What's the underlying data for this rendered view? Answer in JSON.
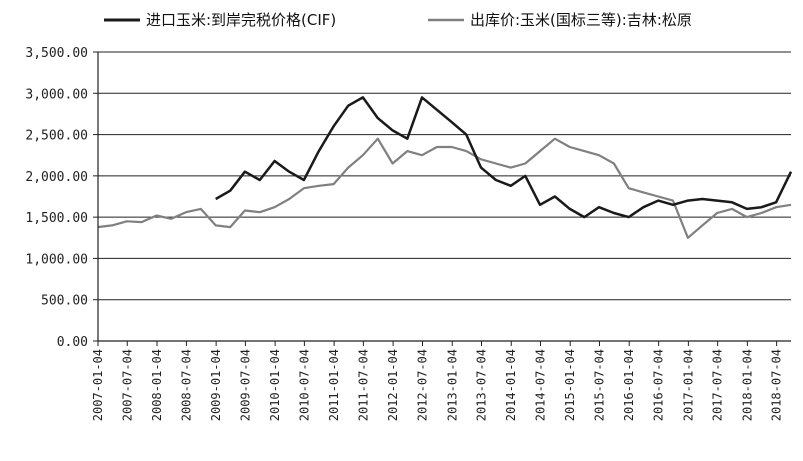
{
  "chart_data": {
    "type": "line",
    "title": "",
    "xlabel": "",
    "ylabel": "",
    "ylim": [
      0,
      3500
    ],
    "y_ticks": [
      0,
      500,
      1000,
      1500,
      2000,
      2500,
      3000,
      3500
    ],
    "y_tick_labels": [
      "0.00",
      "500.00",
      "1,000.00",
      "1,500.00",
      "2,000.00",
      "2,500.00",
      "3,000.00",
      "3,500.00"
    ],
    "x_range": [
      "2007-01-04",
      "2018-10-01"
    ],
    "x_tick_labels": [
      "2007-01-04",
      "2007-07-04",
      "2008-01-04",
      "2008-07-04",
      "2009-01-04",
      "2009-07-04",
      "2010-01-04",
      "2010-07-04",
      "2011-01-04",
      "2011-07-04",
      "2012-01-04",
      "2012-07-04",
      "2013-01-04",
      "2013-07-04",
      "2014-01-04",
      "2014-07-04",
      "2015-01-04",
      "2015-07-04",
      "2016-01-04",
      "2016-07-04",
      "2017-01-04",
      "2017-07-04",
      "2018-01-04",
      "2018-07-04"
    ],
    "grid": "horizontal",
    "legend_position": "top",
    "series": [
      {
        "name": "进口玉米:到岸完税价格(CIF)",
        "color": "#1a1a1a",
        "x": [
          "2009-01-01",
          "2009-04-01",
          "2009-07-01",
          "2009-10-01",
          "2010-01-01",
          "2010-04-01",
          "2010-07-01",
          "2010-10-01",
          "2011-01-01",
          "2011-04-01",
          "2011-07-01",
          "2011-10-01",
          "2012-01-01",
          "2012-04-01",
          "2012-07-01",
          "2012-10-01",
          "2013-01-01",
          "2013-04-01",
          "2013-07-01",
          "2013-10-01",
          "2014-01-01",
          "2014-04-01",
          "2014-07-01",
          "2014-10-01",
          "2015-01-01",
          "2015-04-01",
          "2015-07-01",
          "2015-10-01",
          "2016-01-01",
          "2016-04-01",
          "2016-07-01",
          "2016-10-01",
          "2017-01-01",
          "2017-04-01",
          "2017-07-01",
          "2017-10-01",
          "2018-01-01",
          "2018-04-01",
          "2018-07-01",
          "2018-10-01"
        ],
        "values": [
          1720,
          1820,
          2050,
          1950,
          2180,
          2050,
          1950,
          2300,
          2600,
          2850,
          2950,
          2700,
          2550,
          2450,
          2950,
          2800,
          2650,
          2500,
          2100,
          1950,
          1880,
          2000,
          1650,
          1750,
          1600,
          1500,
          1620,
          1550,
          1500,
          1620,
          1700,
          1650,
          1700,
          1720,
          1700,
          1680,
          1600,
          1620,
          1680,
          2050
        ]
      },
      {
        "name": "出库价:玉米(国标三等):吉林:松原",
        "color": "#808080",
        "x": [
          "2007-01-01",
          "2007-04-01",
          "2007-07-01",
          "2007-10-01",
          "2008-01-01",
          "2008-04-01",
          "2008-07-01",
          "2008-10-01",
          "2009-01-01",
          "2009-04-01",
          "2009-07-01",
          "2009-10-01",
          "2010-01-01",
          "2010-04-01",
          "2010-07-01",
          "2010-10-01",
          "2011-01-01",
          "2011-04-01",
          "2011-07-01",
          "2011-10-01",
          "2012-01-01",
          "2012-04-01",
          "2012-07-01",
          "2012-10-01",
          "2013-01-01",
          "2013-04-01",
          "2013-07-01",
          "2013-10-01",
          "2014-01-01",
          "2014-04-01",
          "2014-07-01",
          "2014-10-01",
          "2015-01-01",
          "2015-04-01",
          "2015-07-01",
          "2015-10-01",
          "2016-01-01",
          "2016-04-01",
          "2016-07-01",
          "2016-10-01",
          "2017-01-01",
          "2017-04-01",
          "2017-07-01",
          "2017-10-01",
          "2018-01-01",
          "2018-04-01",
          "2018-07-01",
          "2018-10-01"
        ],
        "values": [
          1380,
          1400,
          1450,
          1440,
          1520,
          1480,
          1560,
          1600,
          1400,
          1380,
          1580,
          1560,
          1620,
          1720,
          1850,
          1880,
          1900,
          2100,
          2250,
          2450,
          2150,
          2300,
          2250,
          2350,
          2350,
          2300,
          2200,
          2150,
          2100,
          2150,
          2300,
          2450,
          2350,
          2300,
          2250,
          2150,
          1850,
          1800,
          1750,
          1700,
          1250,
          1400,
          1550,
          1600,
          1500,
          1550,
          1620,
          1650
        ]
      }
    ]
  }
}
